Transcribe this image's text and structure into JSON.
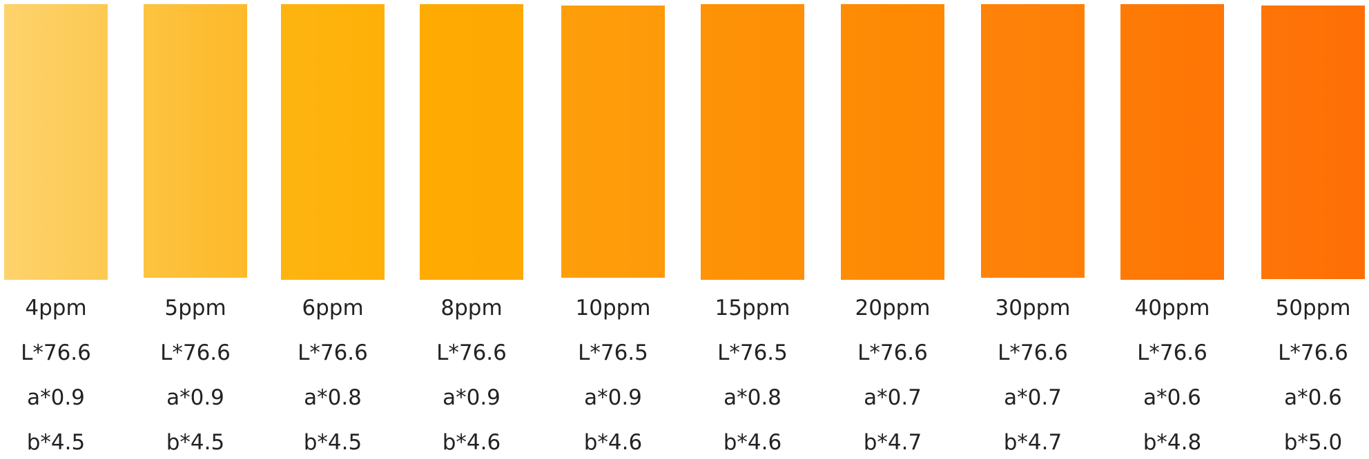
{
  "samples": [
    {
      "concentration": "4ppm",
      "L": "L*76.6",
      "a": "a*0.9",
      "b": "b*4.5",
      "color": "#FED36C",
      "color_dark": "#FCC952"
    },
    {
      "concentration": "5ppm",
      "L": "L*76.6",
      "a": "a*0.9",
      "b": "b*4.5",
      "color": "#FDC340",
      "color_dark": "#FDB92A"
    },
    {
      "concentration": "6ppm",
      "L": "L*76.6",
      "a": "a*0.8",
      "b": "b*4.5",
      "color": "#FEB410",
      "color_dark": "#FEB007"
    },
    {
      "concentration": "8ppm",
      "L": "L*76.6",
      "a": "a*0.9",
      "b": "b*4.6",
      "color": "#FEAB03",
      "color_dark": "#FEA803"
    },
    {
      "concentration": "10ppm",
      "L": "L*76.5",
      "a": "a*0.9",
      "b": "b*4.6",
      "color": "#FE9E0A",
      "color_dark": "#FE9A0A"
    },
    {
      "concentration": "15ppm",
      "L": "L*76.5",
      "a": "a*0.8",
      "b": "b*4.6",
      "color": "#FE9306",
      "color_dark": "#FE8F06"
    },
    {
      "concentration": "20ppm",
      "L": "L*76.6",
      "a": "a*0.7",
      "b": "b*4.7",
      "color": "#FE8C05",
      "color_dark": "#FE8804"
    },
    {
      "concentration": "30ppm",
      "L": "L*76.6",
      "a": "a*0.7",
      "b": "b*4.7",
      "color": "#FE8309",
      "color_dark": "#FE7F08"
    },
    {
      "concentration": "40ppm",
      "L": "L*76.6",
      "a": "a*0.6",
      "b": "b*4.8",
      "color": "#FE7B06",
      "color_dark": "#FE7505"
    },
    {
      "concentration": "50ppm",
      "L": "L*76.6",
      "a": "a*0.6",
      "b": "b*5.0",
      "color": "#FE7508",
      "color_dark": "#FE6F05"
    }
  ]
}
